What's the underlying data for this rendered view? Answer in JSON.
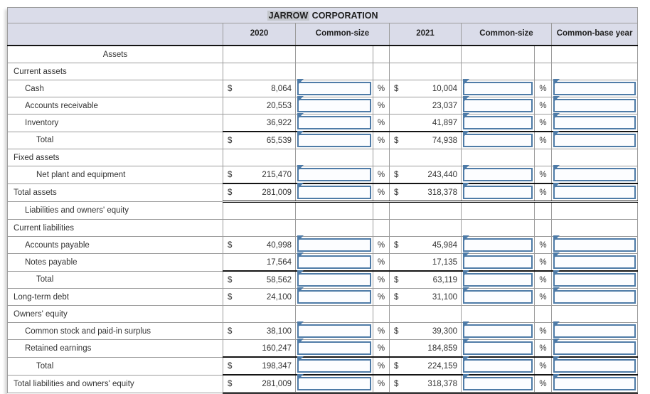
{
  "header": {
    "title_highlight": "JARROW",
    "title_rest": " CORPORATION",
    "columns": [
      "2020",
      "Common-size",
      "2021",
      "Common-size",
      "Common-base year"
    ]
  },
  "symbols": {
    "percent": "%",
    "dollar": "$"
  },
  "colors": {
    "accent_blue": "#4e7ba7",
    "header_bg": "#dadce9",
    "title_highlight_bg": "#c3c6cb",
    "grid_gray": "#9c9c9c",
    "rule_black": "#141414"
  },
  "rows": [
    {
      "type": "section",
      "label": "Assets",
      "indent": 0,
      "align": "center"
    },
    {
      "type": "section",
      "label": "Current assets",
      "indent": 0
    },
    {
      "type": "data",
      "label": "Cash",
      "indent": 1,
      "dollar_2020": "$",
      "value_2020": "8,064",
      "dollar_2021": "$",
      "value_2021": "10,004"
    },
    {
      "type": "data",
      "label": "Accounts receivable",
      "indent": 1,
      "dollar_2020": "",
      "value_2020": "20,553",
      "dollar_2021": "",
      "value_2021": "23,037"
    },
    {
      "type": "data",
      "label": "Inventory",
      "indent": 1,
      "dollar_2020": "",
      "value_2020": "36,922",
      "dollar_2021": "",
      "value_2021": "41,897"
    },
    {
      "type": "data",
      "label": "Total",
      "indent": 2,
      "dollar_2020": "$",
      "value_2020": "65,539",
      "dollar_2021": "$",
      "value_2021": "74,938",
      "rule_top": true
    },
    {
      "type": "section",
      "label": "Fixed assets",
      "indent": 0
    },
    {
      "type": "data",
      "label": "Net plant and equipment",
      "indent": 2,
      "dollar_2020": "$",
      "value_2020": "215,470",
      "dollar_2021": "$",
      "value_2021": "243,440"
    },
    {
      "type": "data",
      "label": "Total assets",
      "indent": 0,
      "dollar_2020": "$",
      "value_2020": "281,009",
      "dollar_2021": "$",
      "value_2021": "318,378",
      "rule_top": true,
      "double_bottom": true
    },
    {
      "type": "section",
      "label": "Liabilities and owners' equity",
      "indent": 1
    },
    {
      "type": "section",
      "label": "Current liabilities",
      "indent": 0
    },
    {
      "type": "data",
      "label": "Accounts payable",
      "indent": 1,
      "dollar_2020": "$",
      "value_2020": "40,998",
      "dollar_2021": "$",
      "value_2021": "45,984"
    },
    {
      "type": "data",
      "label": "Notes payable",
      "indent": 1,
      "dollar_2020": "",
      "value_2020": "17,564",
      "dollar_2021": "",
      "value_2021": "17,135"
    },
    {
      "type": "data",
      "label": "Total",
      "indent": 2,
      "dollar_2020": "$",
      "value_2020": "58,562",
      "dollar_2021": "$",
      "value_2021": "63,119",
      "rule_top": true
    },
    {
      "type": "data",
      "label": "Long-term debt",
      "indent": 0,
      "dollar_2020": "$",
      "value_2020": "24,100",
      "dollar_2021": "$",
      "value_2021": "31,100"
    },
    {
      "type": "section",
      "label": "Owners' equity",
      "indent": 0
    },
    {
      "type": "data",
      "label": "Common stock and paid-in surplus",
      "indent": 1,
      "dollar_2020": "$",
      "value_2020": "38,100",
      "dollar_2021": "$",
      "value_2021": "39,300"
    },
    {
      "type": "data",
      "label": "Retained earnings",
      "indent": 1,
      "dollar_2020": "",
      "value_2020": "160,247",
      "dollar_2021": "",
      "value_2021": "184,859"
    },
    {
      "type": "data",
      "label": "Total",
      "indent": 2,
      "dollar_2020": "$",
      "value_2020": "198,347",
      "dollar_2021": "$",
      "value_2021": "224,159",
      "rule_top": true
    },
    {
      "type": "data",
      "label": "Total liabilities and owners' equity",
      "indent": 0,
      "dollar_2020": "$",
      "value_2020": "281,009",
      "dollar_2021": "$",
      "value_2021": "318,378",
      "rule_top": true,
      "double_bottom": true
    }
  ]
}
